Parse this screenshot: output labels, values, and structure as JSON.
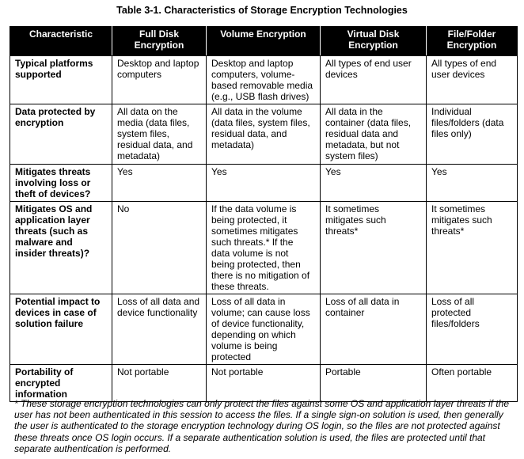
{
  "title": "Table 3-1.  Characteristics of Storage Encryption Technologies",
  "columns": [
    "Characteristic",
    "Full Disk\nEncryption",
    "Volume Encryption",
    "Virtual Disk\nEncryption",
    "File/Folder\nEncryption"
  ],
  "rows": [
    [
      "Typical platforms\nsupported",
      "Desktop and laptop\ncomputers",
      "Desktop and laptop\ncomputers, volume-\nbased removable media\n(e.g., USB flash drives)",
      "All types of end user\ndevices",
      "All types of end\nuser devices"
    ],
    [
      "Data protected by\nencryption",
      "All data on the\nmedia (data files,\nsystem files,\nresidual data, and\nmetadata)",
      "All data in the volume\n(data files, system files,\nresidual data, and\nmetadata)",
      "All data in the\ncontainer (data files,\nresidual data and\nmetadata, but not\nsystem files)",
      "Individual\nfiles/folders (data\nfiles only)"
    ],
    [
      "Mitigates threats\ninvolving loss or\ntheft of devices?",
      "Yes",
      "Yes",
      "Yes",
      "Yes"
    ],
    [
      "Mitigates OS and\napplication layer\nthreats (such as\nmalware and\ninsider threats)?",
      "No",
      "If the data volume is\nbeing protected, it\nsometimes mitigates\nsuch threats.* If the\ndata volume is not\nbeing protected, then\nthere is no mitigation of\nthese threats.",
      "It sometimes\nmitigates such\nthreats*",
      "It sometimes\nmitigates such\nthreats*"
    ],
    [
      "Potential impact to\ndevices in case of\nsolution failure",
      "Loss of all data and\ndevice functionality",
      "Loss of all data in\nvolume; can cause loss\nof device functionality,\ndepending on which\nvolume is being\nprotected",
      "Loss of all data in\ncontainer",
      "Loss of all\nprotected\nfiles/folders"
    ],
    [
      "Portability of\nencrypted\ninformation",
      "Not portable",
      "Not portable",
      "Portable",
      "Often portable"
    ]
  ],
  "footnote": "* These storage encryption technologies can only protect the files against some OS and application layer threats if the user has not been authenticated in this session to access the files.  If a single sign-on solution is used, then generally the user is authenticated to the storage encryption technology during OS login, so the files are not protected against these threats once OS login occurs.  If a separate authentication solution is used, the files are protected until that separate authentication is performed."
}
